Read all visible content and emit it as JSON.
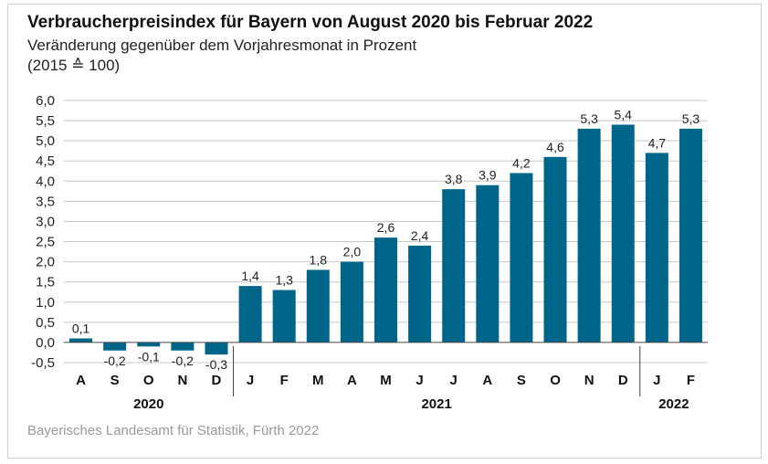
{
  "chart_data": {
    "type": "bar",
    "title": "Verbraucherpreisindex für Bayern von August 2020 bis Februar 2022",
    "subtitle": "Veränderung gegenüber dem Vorjahresmonat in Prozent",
    "note": "(2015 ≙ 100)",
    "source": "Bayerisches Landesamt für Statistik, Fürth 2022",
    "categories": [
      "A",
      "S",
      "O",
      "N",
      "D",
      "J",
      "F",
      "M",
      "A",
      "M",
      "J",
      "J",
      "A",
      "S",
      "O",
      "N",
      "D",
      "J",
      "F"
    ],
    "values": [
      0.1,
      -0.2,
      -0.1,
      -0.2,
      -0.3,
      1.4,
      1.3,
      1.8,
      2.0,
      2.6,
      2.4,
      3.8,
      3.9,
      4.2,
      4.6,
      5.3,
      5.4,
      4.7,
      5.3
    ],
    "value_labels": [
      "0,1",
      "-0,2",
      "-0,1",
      "-0,2",
      "-0,3",
      "1,4",
      "1,3",
      "1,8",
      "2,0",
      "2,6",
      "2,4",
      "3,8",
      "3,9",
      "4,2",
      "4,6",
      "5,3",
      "5,4",
      "4,7",
      "5,3"
    ],
    "years": [
      {
        "label": "2020",
        "start": 0,
        "end": 4
      },
      {
        "label": "2021",
        "start": 5,
        "end": 16
      },
      {
        "label": "2022",
        "start": 17,
        "end": 18
      }
    ],
    "y_ticks": [
      -0.5,
      0,
      0.5,
      1,
      1.5,
      2,
      2.5,
      3,
      3.5,
      4,
      4.5,
      5,
      5.5,
      6
    ],
    "y_tick_labels": [
      "-0,5",
      "0,0",
      "0,5",
      "1,0",
      "1,5",
      "2,0",
      "2,5",
      "3,0",
      "3,5",
      "4,0",
      "4,5",
      "5,0",
      "5,5",
      "6,0"
    ],
    "ylim": [
      -0.5,
      6.0
    ],
    "grid": true,
    "bar_color": "#006689"
  }
}
